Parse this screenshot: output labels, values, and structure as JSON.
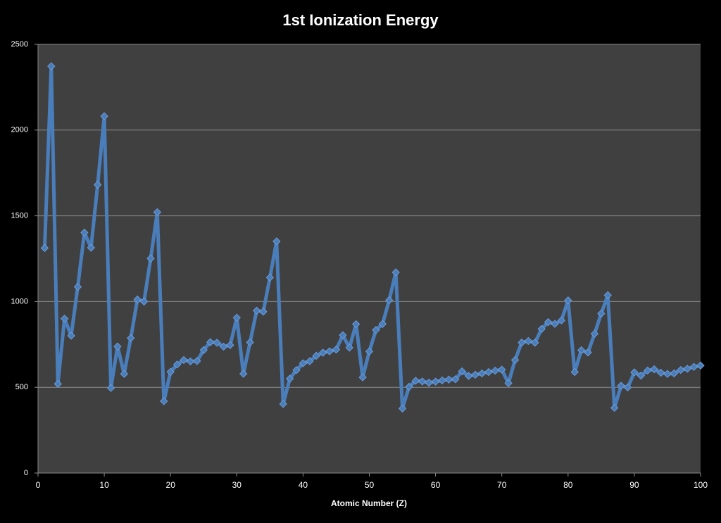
{
  "chart_data": {
    "type": "line",
    "title": "1st Ionization Energy",
    "x_label": "Atomic Number (Z)",
    "x": [
      1,
      2,
      3,
      4,
      5,
      6,
      7,
      8,
      9,
      10,
      11,
      12,
      13,
      14,
      15,
      16,
      17,
      18,
      19,
      20,
      21,
      22,
      23,
      24,
      25,
      26,
      27,
      28,
      29,
      30,
      31,
      32,
      33,
      34,
      35,
      36,
      37,
      38,
      39,
      40,
      41,
      42,
      43,
      44,
      45,
      46,
      47,
      48,
      49,
      50,
      51,
      52,
      53,
      54,
      55,
      56,
      57,
      58,
      59,
      60,
      61,
      62,
      63,
      64,
      65,
      66,
      67,
      68,
      69,
      70,
      71,
      72,
      73,
      74,
      75,
      76,
      77,
      78,
      79,
      80,
      81,
      82,
      83,
      84,
      85,
      86,
      87,
      88,
      89,
      90,
      91,
      92,
      93,
      94,
      95,
      96,
      97,
      98,
      99,
      100
    ],
    "series": [
      {
        "color": "#4a7ebb",
        "values": [
          1312,
          2372,
          520,
          900,
          801,
          1086,
          1402,
          1314,
          1681,
          2081,
          496,
          738,
          578,
          787,
          1012,
          1000,
          1251,
          1521,
          419,
          590,
          633,
          659,
          651,
          653,
          717,
          763,
          760,
          737,
          746,
          906,
          579,
          762,
          947,
          941,
          1140,
          1351,
          403,
          550,
          600,
          640,
          652,
          684,
          702,
          710,
          720,
          804,
          731,
          868,
          558,
          709,
          834,
          869,
          1008,
          1170,
          376,
          503,
          538,
          534,
          527,
          533,
          540,
          545,
          547,
          593,
          566,
          573,
          581,
          589,
          597,
          603,
          524,
          659,
          761,
          770,
          760,
          840,
          880,
          870,
          890,
          1007,
          589,
          716,
          703,
          812,
          930,
          1037,
          380,
          509,
          499,
          587,
          568,
          598,
          605,
          585,
          578,
          581,
          601,
          608,
          619,
          627
        ]
      }
    ],
    "xlim": [
      0,
      100
    ],
    "xticks": [
      0,
      10,
      20,
      30,
      40,
      50,
      60,
      70,
      80,
      90,
      100
    ],
    "ylim": [
      0,
      2500
    ],
    "yticks": [
      0,
      500,
      1000,
      1500,
      2000,
      2500
    ],
    "grid": true
  }
}
